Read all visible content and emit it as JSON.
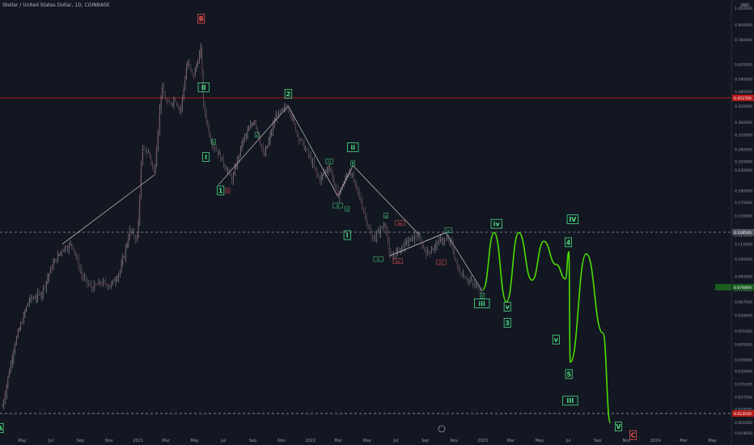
{
  "header": {
    "title": "Stellar / United States Dollar, 1D, COINBASE",
    "currency": "USD"
  },
  "chart_data": {
    "type": "line",
    "scale": "log",
    "ylim": [
      0.0196,
      1.05
    ],
    "y_ticks": [
      "1.050000",
      "0.900000",
      "0.780000",
      "0.620000",
      "0.540000",
      "0.480000",
      "0.420000",
      "0.360000",
      "0.320000",
      "0.280000",
      "0.250000",
      "0.230000",
      "0.190000",
      "0.170000",
      "0.150000",
      "0.125000",
      "0.115000",
      "0.100000",
      "0.085000",
      "0.075000",
      "0.067000",
      "0.059000",
      "0.051000",
      "0.045000",
      "0.039000",
      "0.035000",
      "0.031000",
      "0.027500",
      "0.024500",
      "0.021600",
      "0.019600"
    ],
    "x_ticks": [
      "May",
      "Jul",
      "Sep",
      "Nov",
      "2021",
      "Mar",
      "May",
      "Jul",
      "Sep",
      "Nov",
      "2022",
      "Mar",
      "May",
      "Jul",
      "Sep",
      "Nov",
      "2023",
      "Mar",
      "May",
      "Jul",
      "Sep",
      "Nov",
      "2024",
      "Mar",
      "May"
    ],
    "price_tags": [
      {
        "price": 0.4527,
        "label": "0.452700",
        "kind": "red"
      },
      {
        "price": 0.1285,
        "label": "0.128500",
        "kind": "gray"
      },
      {
        "price": 0.0768,
        "label": "0.076800",
        "kind": "green"
      },
      {
        "price": 0.0235,
        "label": "0.023500",
        "kind": "red"
      }
    ],
    "levels": [
      {
        "price": 0.4527,
        "style": "solid-red"
      },
      {
        "price": 0.1285,
        "style": "dashed-gray"
      },
      {
        "price": 0.0235,
        "style": "dashed-gray"
      }
    ],
    "series": [
      {
        "role": "history",
        "color": "#ef5350",
        "points": [
          [
            "2020-03-20",
            0.025
          ],
          [
            "2020-04-15",
            0.045
          ],
          [
            "2020-05-15",
            0.068
          ],
          [
            "2020-06-10",
            0.072
          ],
          [
            "2020-07-05",
            0.095
          ],
          [
            "2020-07-25",
            0.11
          ],
          [
            "2020-08-15",
            0.115
          ],
          [
            "2020-09-05",
            0.085
          ],
          [
            "2020-09-25",
            0.076
          ],
          [
            "2020-10-15",
            0.08
          ],
          [
            "2020-11-05",
            0.078
          ],
          [
            "2020-11-25",
            0.09
          ],
          [
            "2020-12-15",
            0.13
          ],
          [
            "2020-12-31",
            0.12
          ],
          [
            "2021-01-10",
            0.28
          ],
          [
            "2021-01-25",
            0.27
          ],
          [
            "2021-02-05",
            0.22
          ],
          [
            "2021-02-20",
            0.5
          ],
          [
            "2021-03-05",
            0.42
          ],
          [
            "2021-03-20",
            0.45
          ],
          [
            "2021-04-01",
            0.4
          ],
          [
            "2021-04-16",
            0.64
          ],
          [
            "2021-04-28",
            0.55
          ],
          [
            "2021-05-15",
            0.72
          ],
          [
            "2021-05-20",
            0.42
          ],
          [
            "2021-06-05",
            0.3
          ],
          [
            "2021-06-20",
            0.27
          ],
          [
            "2021-07-20",
            0.21
          ],
          [
            "2021-08-10",
            0.3
          ],
          [
            "2021-09-05",
            0.37
          ],
          [
            "2021-09-25",
            0.26
          ],
          [
            "2021-10-20",
            0.38
          ],
          [
            "2021-11-15",
            0.42
          ],
          [
            "2021-12-05",
            0.32
          ],
          [
            "2021-12-31",
            0.26
          ],
          [
            "2022-01-20",
            0.21
          ],
          [
            "2022-02-10",
            0.24
          ],
          [
            "2022-02-28",
            0.18
          ],
          [
            "2022-03-25",
            0.23
          ],
          [
            "2022-04-15",
            0.18
          ],
          [
            "2022-05-12",
            0.12
          ],
          [
            "2022-06-10",
            0.14
          ],
          [
            "2022-06-18",
            0.1
          ],
          [
            "2022-07-20",
            0.115
          ],
          [
            "2022-08-15",
            0.125
          ],
          [
            "2022-09-05",
            0.105
          ],
          [
            "2022-10-05",
            0.12
          ],
          [
            "2022-10-25",
            0.118
          ],
          [
            "2022-11-10",
            0.09
          ],
          [
            "2022-12-15",
            0.078
          ],
          [
            "2022-12-31",
            0.074
          ]
        ]
      },
      {
        "role": "projection",
        "color": "#4ade00",
        "points": [
          [
            "2023-01-01",
            0.075
          ],
          [
            "2023-01-25",
            0.128
          ],
          [
            "2023-02-20",
            0.067
          ],
          [
            "2023-03-18",
            0.128
          ],
          [
            "2023-04-15",
            0.082
          ],
          [
            "2023-05-10",
            0.118
          ],
          [
            "2023-06-05",
            0.095
          ],
          [
            "2023-06-25",
            0.083
          ],
          [
            "2023-07-02",
            0.107
          ],
          [
            "2023-07-05",
            0.038
          ],
          [
            "2023-08-08",
            0.105
          ],
          [
            "2023-09-12",
            0.05
          ],
          [
            "2023-09-28",
            0.0215
          ]
        ]
      }
    ],
    "structure_lines": [
      [
        [
          "2020-07-25",
          0.115
        ],
        [
          "2021-02-05",
          0.22
        ]
      ],
      [
        [
          "2021-06-20",
          0.2
        ],
        [
          "2021-11-15",
          0.42
        ]
      ],
      [
        [
          "2021-11-15",
          0.42
        ],
        [
          "2022-02-28",
          0.18
        ]
      ],
      [
        [
          "2022-02-28",
          0.18
        ],
        [
          "2022-04-01",
          0.24
        ]
      ],
      [
        [
          "2022-04-01",
          0.24
        ],
        [
          "2022-08-20",
          0.125
        ]
      ],
      [
        [
          "2022-06-18",
          0.103
        ],
        [
          "2022-10-15",
          0.128
        ]
      ],
      [
        [
          "2022-06-18",
          0.103
        ],
        [
          "2022-10-15",
          0.128
        ]
      ],
      [
        [
          "2022-10-15",
          0.128
        ],
        [
          "2022-12-31",
          0.074
        ]
      ]
    ],
    "wave_labels": [
      {
        "text": "A",
        "date": "2020-03-15",
        "price": 0.0205,
        "style": "box-green"
      },
      {
        "text": "B",
        "date": "2021-05-15",
        "price": 0.95,
        "style": "box-red"
      },
      {
        "text": "II",
        "date": "2021-05-20",
        "price": 0.5,
        "style": "box-green"
      },
      {
        "text": "I",
        "date": "2021-05-25",
        "price": 0.26,
        "style": "box-green"
      },
      {
        "text": "1",
        "date": "2021-06-25",
        "price": 0.19,
        "style": "box-green"
      },
      {
        "text": "2",
        "date": "2021-11-15",
        "price": 0.47,
        "style": "box-green"
      },
      {
        "text": "ii",
        "date": "2022-04-01",
        "price": 0.285,
        "style": "box-green"
      },
      {
        "text": "I",
        "date": "2022-03-20",
        "price": 0.125,
        "style": "box-green"
      },
      {
        "text": "iii",
        "date": "2022-12-30",
        "price": 0.066,
        "style": "box-green"
      },
      {
        "text": "iv",
        "date": "2023-01-30",
        "price": 0.139,
        "style": "box-green"
      },
      {
        "text": "v",
        "date": "2023-02-22",
        "price": 0.064,
        "style": "box-green"
      },
      {
        "text": "3",
        "date": "2023-02-22",
        "price": 0.055,
        "style": "box-green"
      },
      {
        "text": "IV",
        "date": "2023-07-10",
        "price": 0.145,
        "style": "box-green"
      },
      {
        "text": "4",
        "date": "2023-07-01",
        "price": 0.117,
        "style": "box-green"
      },
      {
        "text": "v",
        "date": "2023-06-05",
        "price": 0.047,
        "style": "box-green"
      },
      {
        "text": "5",
        "date": "2023-07-02",
        "price": 0.034,
        "style": "box-green"
      },
      {
        "text": "III",
        "date": "2023-07-05",
        "price": 0.0265,
        "style": "box-green"
      },
      {
        "text": "V",
        "date": "2023-10-15",
        "price": 0.0208,
        "style": "box-green"
      },
      {
        "text": "C",
        "date": "2023-11-15",
        "price": 0.0192,
        "style": "box-red"
      },
      {
        "text": "a",
        "date": "2021-06-10",
        "price": 0.3,
        "style": "small-green"
      },
      {
        "text": "b",
        "date": "2021-07-10",
        "price": 0.19,
        "style": "small-red"
      },
      {
        "text": "c",
        "date": "2021-09-10",
        "price": 0.32,
        "style": "small-green"
      },
      {
        "text": "iii",
        "date": "2022-02-28",
        "price": 0.165,
        "style": "small-green"
      },
      {
        "text": "iv",
        "date": "2022-02-10",
        "price": 0.25,
        "style": "small-green"
      },
      {
        "text": "v",
        "date": "2022-03-20",
        "price": 0.16,
        "style": "small-green"
      },
      {
        "text": "B",
        "date": "2022-04-01",
        "price": 0.245,
        "style": "small-green"
      },
      {
        "text": "a",
        "date": "2022-06-10",
        "price": 0.15,
        "style": "small-green"
      },
      {
        "text": "(a)",
        "date": "2022-07-05",
        "price": 0.098,
        "style": "small-red"
      },
      {
        "text": "(b)",
        "date": "2022-07-10",
        "price": 0.14,
        "style": "small-red"
      },
      {
        "text": "iii",
        "date": "2022-05-25",
        "price": 0.1,
        "style": "small-green"
      },
      {
        "text": "iv",
        "date": "2022-10-20",
        "price": 0.131,
        "style": "small-green"
      },
      {
        "text": "(c)",
        "date": "2022-10-05",
        "price": 0.097,
        "style": "small-red"
      },
      {
        "text": "v",
        "date": "2022-12-31",
        "price": 0.071,
        "style": "small-green"
      }
    ]
  }
}
